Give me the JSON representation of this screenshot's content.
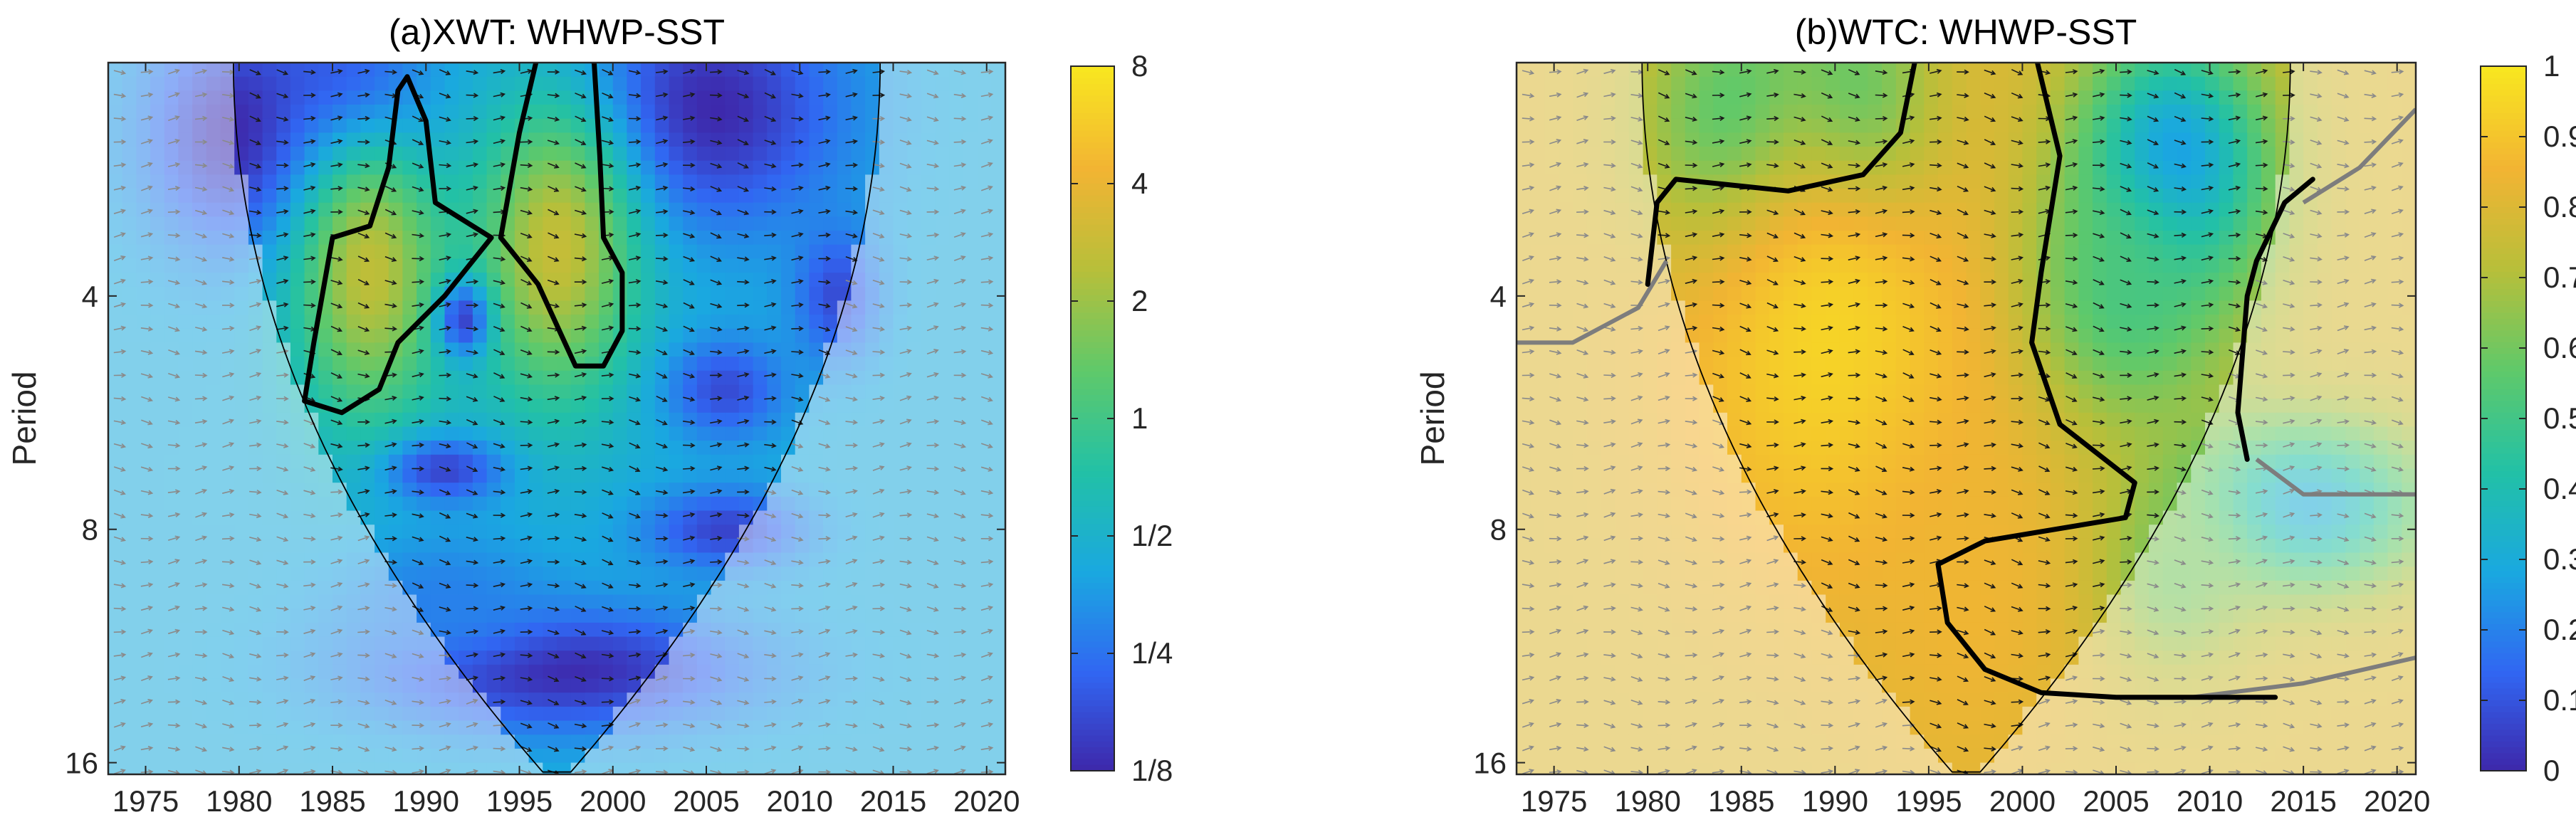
{
  "chart_data": [
    {
      "type": "heatmap",
      "title": "(a)XWT: WHWP-SST",
      "xlabel": "",
      "ylabel": "Period",
      "xlim": [
        1973,
        2021
      ],
      "ylim_log2": [
        1.0,
        4.05
      ],
      "x_ticks": [
        1975,
        1980,
        1985,
        1990,
        1995,
        2000,
        2005,
        2010,
        2015,
        2020
      ],
      "y_ticks": [
        4,
        8,
        16
      ],
      "y_tick_labels": [
        "4",
        "8",
        "16"
      ],
      "colorbar": {
        "scale": "log2",
        "range_log2": [
          -3,
          3
        ],
        "ticks_log2": [
          3,
          2,
          1,
          0,
          -1,
          -2,
          -3
        ],
        "tick_labels": [
          "8",
          "4",
          "2",
          "1",
          "1/2",
          "1/4",
          "1/8"
        ]
      },
      "colormap": [
        "#3e26a8",
        "#3166f2",
        "#1aa8e0",
        "#22c1a6",
        "#5fc96a",
        "#b7bf3a",
        "#f2b433",
        "#f8e620"
      ],
      "background_log2": -1.2,
      "blobs": [
        {
          "x": 1980,
          "log2p": 1.3,
          "value_log2": -3.0,
          "sx": 3.5,
          "sy": 0.35
        },
        {
          "x": 1986,
          "log2p": 1.2,
          "value_log2": -3.0,
          "sx": 3.0,
          "sy": 0.3
        },
        {
          "x": 2005,
          "log2p": 1.2,
          "value_log2": -3.0,
          "sx": 5.0,
          "sy": 0.35
        },
        {
          "x": 1987,
          "log2p": 1.9,
          "value_log2": 1.4,
          "sx": 2.8,
          "sy": 0.45
        },
        {
          "x": 1997,
          "log2p": 1.8,
          "value_log2": 1.5,
          "sx": 3.0,
          "sy": 0.45
        },
        {
          "x": 1992,
          "log2p": 2.1,
          "value_log2": -2.6,
          "sx": 1.0,
          "sy": 0.12
        },
        {
          "x": 2012,
          "log2p": 2.0,
          "value_log2": -2.5,
          "sx": 1.6,
          "sy": 0.2
        },
        {
          "x": 1991,
          "log2p": 2.75,
          "value_log2": -2.6,
          "sx": 2.2,
          "sy": 0.1
        },
        {
          "x": 2006,
          "log2p": 2.4,
          "value_log2": -2.5,
          "sx": 2.2,
          "sy": 0.15
        },
        {
          "x": 2006,
          "log2p": 3.0,
          "value_log2": -2.6,
          "sx": 3.0,
          "sy": 0.12
        },
        {
          "x": 1997,
          "log2p": 3.6,
          "value_log2": -3.0,
          "sx": 7.0,
          "sy": 0.18
        },
        {
          "x": 1991,
          "log2p": 3.3,
          "value_log2": -1.8,
          "sx": 4.0,
          "sy": 0.2
        }
      ],
      "significance_contours": [
        [
          [
            1983.5,
            2.45
          ],
          [
            1984,
            2.2
          ],
          [
            1985,
            1.75
          ],
          [
            1987,
            1.7
          ],
          [
            1988,
            1.45
          ],
          [
            1988.5,
            1.12
          ],
          [
            1989,
            1.06
          ],
          [
            1990,
            1.25
          ],
          [
            1990.5,
            1.6
          ],
          [
            1993.5,
            1.75
          ],
          [
            1991,
            2.0
          ],
          [
            1988.5,
            2.2
          ],
          [
            1987.5,
            2.4
          ],
          [
            1985.5,
            2.5
          ],
          [
            1983.5,
            2.45
          ]
        ],
        [
          [
            1994,
            1.75
          ],
          [
            1995,
            1.3
          ],
          [
            1996,
            0.96
          ],
          [
            1997.5,
            0.9
          ],
          [
            1999,
            1.0
          ],
          [
            1999.3,
            1.4
          ],
          [
            1999.5,
            1.75
          ],
          [
            2000.5,
            1.9
          ],
          [
            2000.5,
            2.15
          ],
          [
            1999.5,
            2.3
          ],
          [
            1998,
            2.3
          ],
          [
            1996,
            1.95
          ],
          [
            1994,
            1.75
          ]
        ]
      ]
    },
    {
      "type": "heatmap",
      "title": "(b)WTC: WHWP-SST",
      "xlabel": "",
      "ylabel": "Period",
      "xlim": [
        1973,
        2021
      ],
      "ylim_log2": [
        1.0,
        4.05
      ],
      "x_ticks": [
        1975,
        1980,
        1985,
        1990,
        1995,
        2000,
        2005,
        2010,
        2015,
        2020
      ],
      "y_ticks": [
        4,
        8,
        16
      ],
      "y_tick_labels": [
        "4",
        "8",
        "16"
      ],
      "colorbar": {
        "scale": "linear",
        "range": [
          0,
          1
        ],
        "ticks": [
          1,
          0.9,
          0.8,
          0.7,
          0.6,
          0.5,
          0.4,
          0.3,
          0.2,
          0.1,
          0
        ],
        "tick_labels": [
          "1",
          "0.9",
          "0.8",
          "0.7",
          "0.6",
          "0.5",
          "0.4",
          "0.3",
          "0.2",
          "0.1",
          "0"
        ]
      },
      "colormap": [
        "#3e26a8",
        "#3166f2",
        "#1aa8e0",
        "#22c1a6",
        "#5fc96a",
        "#b7bf3a",
        "#f2b433",
        "#f8e620"
      ],
      "background": 0.8,
      "blobs": [
        {
          "x": 1985,
          "log2p": 1.3,
          "value": 0.45,
          "sx": 3.5,
          "sy": 0.4
        },
        {
          "x": 1991,
          "log2p": 1.3,
          "value": 0.42,
          "sx": 3.0,
          "sy": 0.4
        },
        {
          "x": 2008,
          "log2p": 1.45,
          "value": 0.2,
          "sx": 3.5,
          "sy": 0.4
        },
        {
          "x": 2005,
          "log2p": 2.0,
          "value": 0.5,
          "sx": 4.0,
          "sy": 0.4
        },
        {
          "x": 2015,
          "log2p": 2.9,
          "value": 0.3,
          "sx": 4.5,
          "sy": 0.25
        },
        {
          "x": 2008,
          "log2p": 3.2,
          "value": 0.6,
          "sx": 3.0,
          "sy": 0.3
        },
        {
          "x": 1990,
          "log2p": 2.2,
          "value": 0.95,
          "sx": 6.0,
          "sy": 0.7
        },
        {
          "x": 1997,
          "log2p": 3.3,
          "value": 0.85,
          "sx": 4.0,
          "sy": 0.6
        }
      ],
      "significance_contours": [
        [
          [
            1980,
            1.95
          ],
          [
            1980.5,
            1.6
          ],
          [
            1981.5,
            1.5
          ],
          [
            1987.5,
            1.55
          ],
          [
            1991.5,
            1.48
          ],
          [
            1993.5,
            1.3
          ],
          [
            1995,
            0.7
          ],
          [
            1996.5,
            0.3
          ]
        ],
        [
          [
            1998.5,
            0.5
          ],
          [
            2000.5,
            0.9
          ],
          [
            2002,
            1.4
          ],
          [
            2001,
            1.9
          ],
          [
            2000.5,
            2.2
          ],
          [
            2002,
            2.55
          ],
          [
            2006,
            2.8
          ],
          [
            2005.5,
            2.95
          ],
          [
            1998,
            3.05
          ],
          [
            1995.5,
            3.15
          ],
          [
            1996,
            3.4
          ],
          [
            1998,
            3.6
          ],
          [
            2001,
            3.7
          ],
          [
            2005,
            3.72
          ],
          [
            2013.5,
            3.72
          ]
        ],
        [
          [
            2012,
            2.7
          ],
          [
            2011.5,
            2.5
          ],
          [
            2012,
            2.0
          ],
          [
            2012.5,
            1.85
          ],
          [
            2014,
            1.6
          ],
          [
            2015.5,
            1.5
          ]
        ]
      ],
      "coi_gray_lines": [
        [
          [
            1973,
            2.2
          ],
          [
            1976,
            2.2
          ],
          [
            1979.5,
            2.05
          ],
          [
            1981,
            1.85
          ]
        ],
        [
          [
            2012.5,
            2.7
          ],
          [
            2015,
            2.85
          ],
          [
            2019,
            2.85
          ],
          [
            2021,
            2.85
          ]
        ],
        [
          [
            2009,
            3.72
          ],
          [
            2015,
            3.66
          ],
          [
            2021,
            3.55
          ]
        ],
        [
          [
            2015,
            1.6
          ],
          [
            2018,
            1.45
          ],
          [
            2021,
            1.2
          ]
        ]
      ]
    }
  ]
}
